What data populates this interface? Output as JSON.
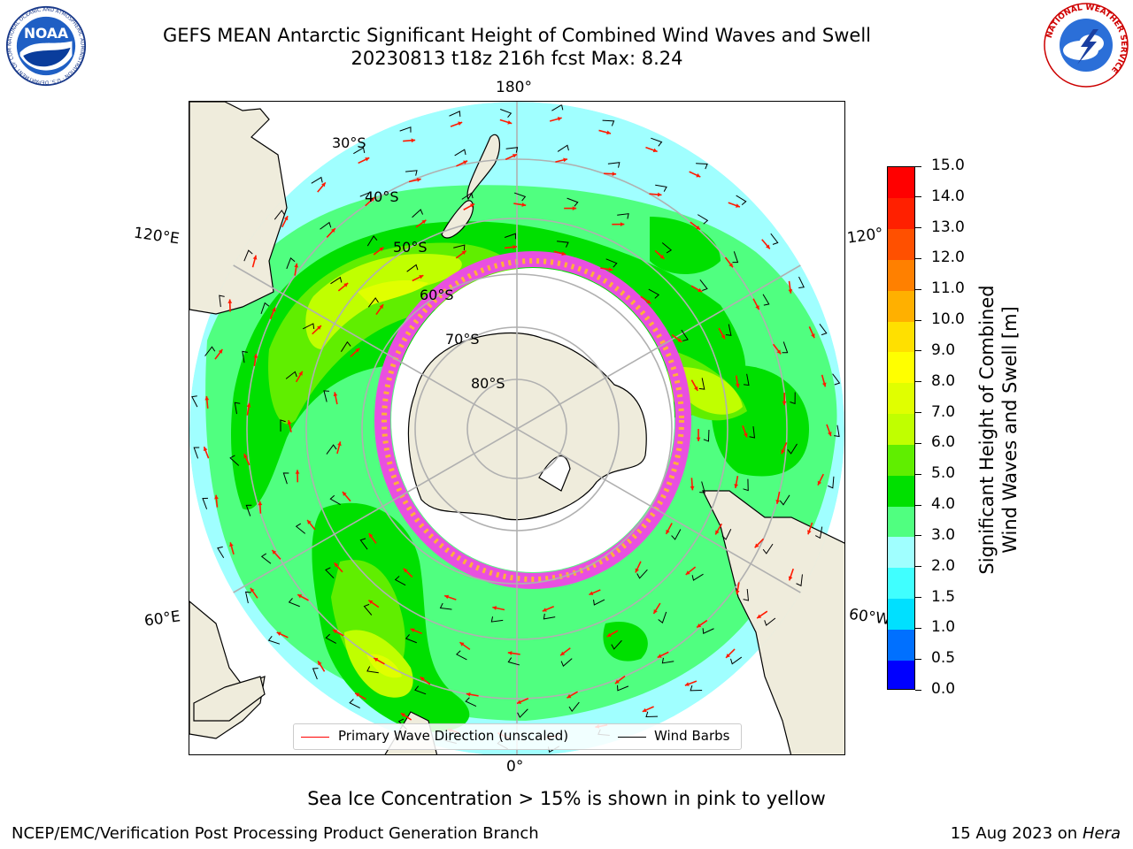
{
  "title_line1": "GEFS MEAN Antarctic Significant Height of Combined Wind Waves and Swell",
  "title_line2": "20230813 t18z 216h fcst   Max: 8.24",
  "map": {
    "projection": "south-polar-stereographic",
    "lon_labels": [
      "180°",
      "120°E",
      "120°",
      "60°E",
      "60°W",
      "0°"
    ],
    "lat_labels": [
      "30°S",
      "40°S",
      "50°S",
      "60°S",
      "70°S",
      "80°S"
    ],
    "colors": {
      "land": "#efecdc",
      "ice_edge": "#e94fe0",
      "ice_inner": "#ffb03a",
      "coast": "#000000",
      "gridline": "#b0b0b0",
      "arrow": "#ff1a00",
      "barb": "#000000"
    }
  },
  "colorbar": {
    "title_line1": "Significant Height of Combined",
    "title_line2": "Wind Waves and Swell [m]",
    "levels": [
      "0.0",
      "0.5",
      "1.0",
      "1.5",
      "2.0",
      "3.0",
      "4.0",
      "5.0",
      "6.0",
      "7.0",
      "8.0",
      "9.0",
      "10.0",
      "11.0",
      "12.0",
      "13.0",
      "14.0",
      "15.0"
    ],
    "colors": [
      "#0000ff",
      "#0070ff",
      "#00e0ff",
      "#40ffff",
      "#a0ffff",
      "#50ff80",
      "#00e000",
      "#60ee00",
      "#c0ff00",
      "#e0ff00",
      "#ffff00",
      "#ffe000",
      "#ffb000",
      "#ff8000",
      "#ff5000",
      "#ff2000",
      "#ff0000"
    ]
  },
  "legend": {
    "primary_wave_label": "Primary Wave Direction (unscaled)",
    "primary_wave_color": "#ff0000",
    "wind_barbs_label": "Wind Barbs",
    "wind_barbs_color": "#000000"
  },
  "caption": "Sea Ice Concentration > 15% is shown in pink to yellow",
  "footer_left": "NCEP/EMC/Verification Post Processing Product Generation Branch",
  "footer_right_prefix": "15 Aug 2023 on",
  "footer_right_host": "Hera",
  "logos": {
    "noaa_text": "NOAA",
    "noaa_ring": "NATIONAL OCEANIC AND ATMOSPHERIC ADMINISTRATION · U.S. DEPARTMENT OF COMMERCE",
    "nws_ring": "NATIONAL WEATHER SERVICE"
  }
}
